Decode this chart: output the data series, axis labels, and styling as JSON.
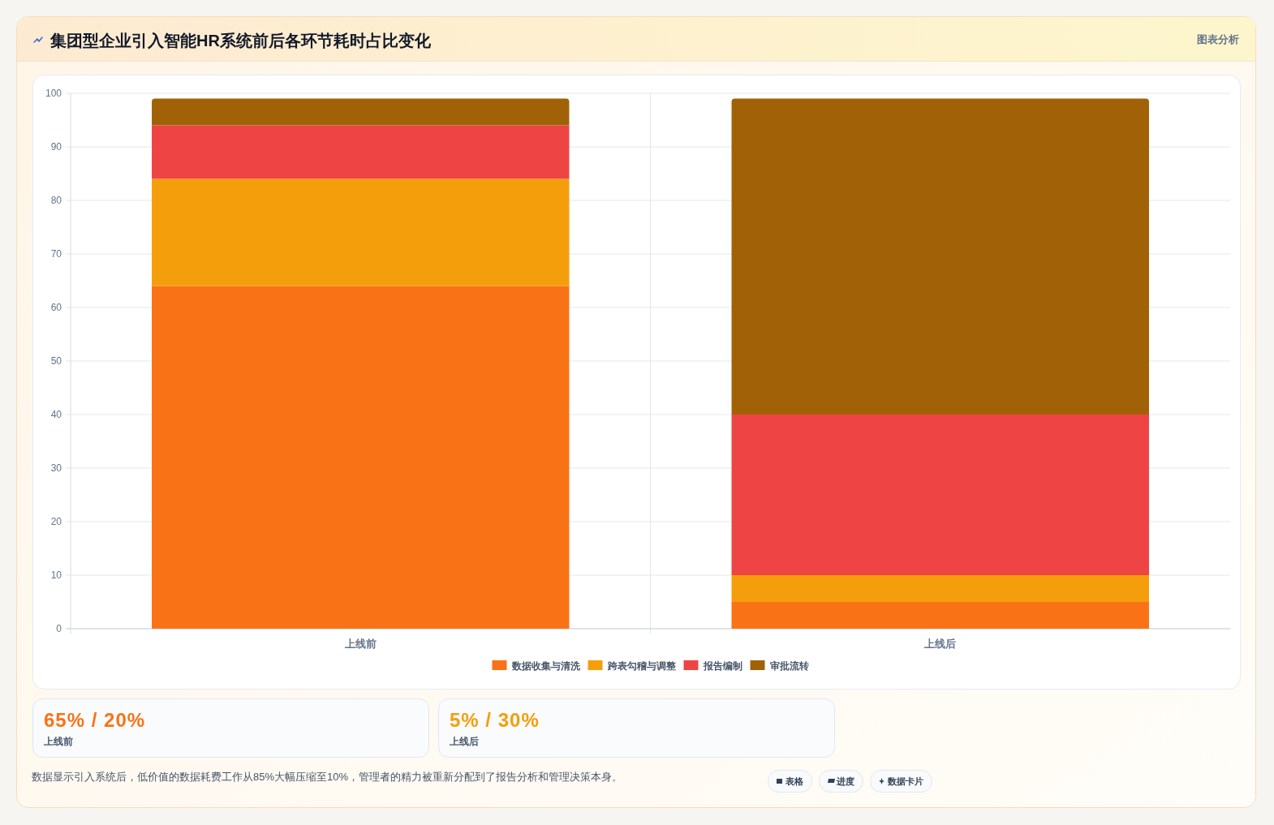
{
  "chart_data": [
    {
      "type": "bar",
      "title": "集团型企业引入智能HR系统前后各环节耗时占比变化",
      "subtitle": "图表分析",
      "categories": [
        "上线前",
        "上线后"
      ],
      "stacked": true,
      "series": [
        {
          "name": "数据收集与清洗",
          "color": "#f97316",
          "values": [
            64,
            5
          ]
        },
        {
          "name": "跨表勾稽与调整",
          "color": "#f59e0b",
          "values": [
            20,
            5
          ]
        },
        {
          "name": "报告编制",
          "color": "#ef4444",
          "values": [
            10,
            30
          ]
        },
        {
          "name": "审批流转",
          "color": "#a16207",
          "values": [
            5,
            59
          ]
        }
      ],
      "ylim": [
        0,
        100
      ],
      "yticks": [
        0,
        10,
        20,
        30,
        40,
        50,
        60,
        70,
        80,
        90,
        100
      ],
      "grid": true,
      "legend": "bottom",
      "annotations": [
        "数据显示引入系统后，低价值的数据耗费工作从85%大幅压缩至10%，管理者的精力被重新分配到了报告分析和管理决策本身。"
      ]
    },
    {
      "type": "other",
      "annotations": [
        "65% / 20%",
        "上线前",
        "5% / 30%",
        "上线后"
      ],
      "colors": [
        "#f97316",
        "#f59e0b"
      ]
    },
    {
      "type": "other",
      "annotations": [
        "表格",
        "进度",
        "数据卡片"
      ]
    }
  ]
}
